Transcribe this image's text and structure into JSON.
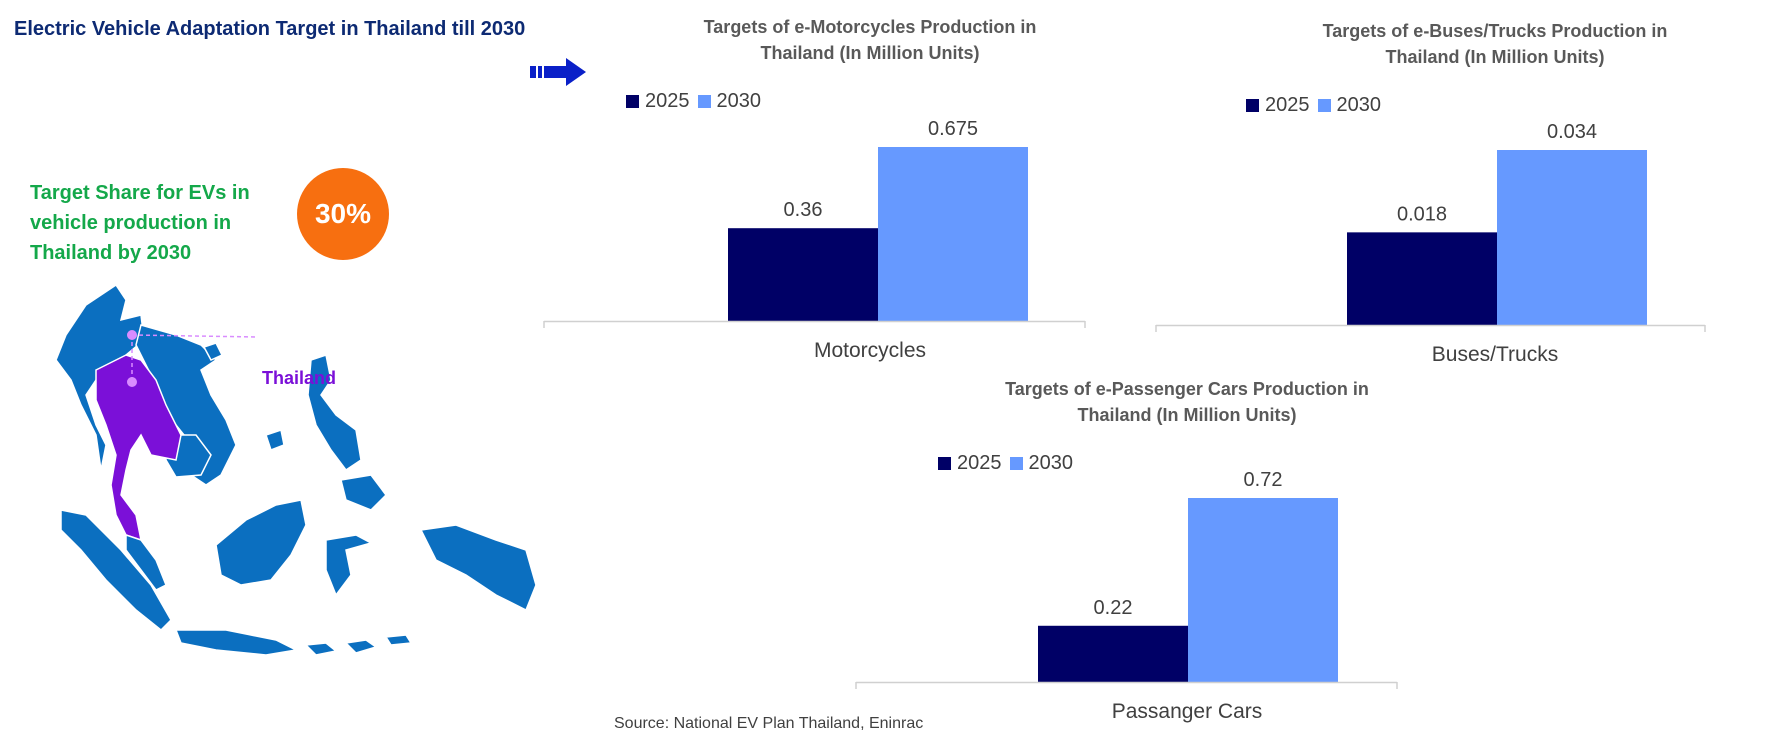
{
  "header": {
    "title": "Electric Vehicle Adaptation Target in Thailand till 2030"
  },
  "highlight": {
    "text": "Target Share for EVs in\nvehicle production in\nThailand by 2030",
    "value": "30%",
    "badge_color": "#f76f10"
  },
  "map": {
    "label": "Thailand",
    "land_color": "#0b6fc0",
    "highlight_color": "#7b10d8"
  },
  "colors": {
    "y2025": "#000066",
    "y2030": "#6699ff"
  },
  "chart_data": [
    {
      "type": "bar",
      "title": "Targets of e-Motorcycles Production in\nThailand (In Million Units)",
      "categories": [
        "Motorcycles"
      ],
      "series": [
        {
          "name": "2025",
          "values": [
            0.36
          ],
          "labels": [
            "0.36"
          ]
        },
        {
          "name": "2030",
          "values": [
            0.675
          ],
          "labels": [
            "0.675"
          ]
        }
      ],
      "ylim": [
        0,
        0.675
      ],
      "legend": "top-left",
      "grid": false
    },
    {
      "type": "bar",
      "title": "Targets of e-Buses/Trucks Production in\nThailand (In Million Units)",
      "categories": [
        "Buses/Trucks"
      ],
      "series": [
        {
          "name": "2025",
          "values": [
            0.018
          ],
          "labels": [
            "0.018"
          ]
        },
        {
          "name": "2030",
          "values": [
            0.034
          ],
          "labels": [
            "0.034"
          ]
        }
      ],
      "ylim": [
        0,
        0.034
      ],
      "legend": "top-left",
      "grid": false
    },
    {
      "type": "bar",
      "title": "Targets of e-Passenger Cars Production in\nThailand (In Million Units)",
      "categories": [
        "Passanger Cars"
      ],
      "series": [
        {
          "name": "2025",
          "values": [
            0.22
          ],
          "labels": [
            "0.22"
          ]
        },
        {
          "name": "2030",
          "values": [
            0.72
          ],
          "labels": [
            "0.72"
          ]
        }
      ],
      "ylim": [
        0,
        0.72
      ],
      "legend": "top-left",
      "grid": false
    }
  ],
  "footer": {
    "source": "Source: National EV Plan Thailand, Eninrac"
  }
}
